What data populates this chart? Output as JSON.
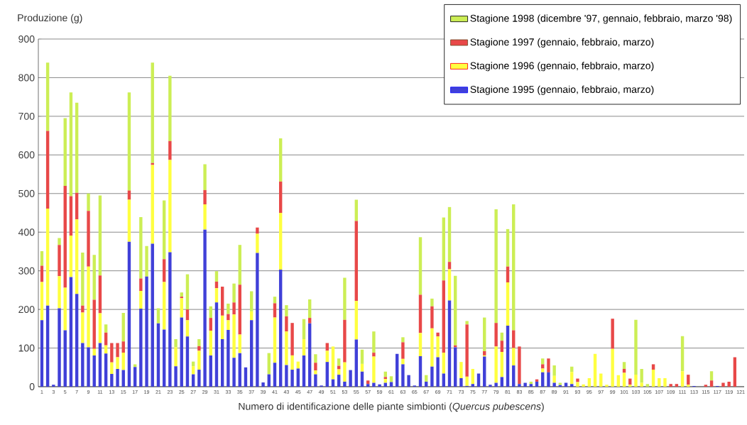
{
  "chart_data": {
    "type": "bar",
    "stacked": true,
    "xlabel": "Numero di identificazione delle piante simbionti (*Quercus pubescens*)",
    "ylabel": "Produzione (g)",
    "categories": [
      "1",
      null,
      "3",
      null,
      "5",
      null,
      "7",
      null,
      "9",
      null,
      "11",
      null,
      "13",
      null,
      "15",
      null,
      "17",
      null,
      "19",
      null,
      "21",
      null,
      "23",
      null,
      "25",
      null,
      "27",
      null,
      "29",
      null,
      "31",
      null,
      "33",
      null,
      "35",
      null,
      "37",
      null,
      "39",
      null,
      "41",
      null,
      "43",
      null,
      "45",
      null,
      "47",
      null,
      "49",
      null,
      "51",
      null,
      "53",
      null,
      "55",
      null,
      "57",
      null,
      "59",
      null,
      "61",
      null,
      "63",
      null,
      "65",
      null,
      "67",
      null,
      "69",
      null,
      "71",
      null,
      "73",
      null,
      "75",
      null,
      "77",
      null,
      "79",
      null,
      "81",
      null,
      "83",
      null,
      "85",
      null,
      "87",
      null,
      "89",
      null,
      "91",
      null,
      "93",
      null,
      "95",
      null,
      "97",
      null,
      "99",
      null,
      "101",
      null,
      "103",
      null,
      "105",
      null,
      "107",
      null,
      "109",
      null,
      "111",
      null,
      "113",
      null,
      "115",
      null,
      "117",
      null,
      "119",
      null,
      "121"
    ],
    "series": [
      {
        "name": "Stagione 1995 (gennaio, febbraio, marzo)",
        "color": "#4040d8",
        "values": [
          172,
          210,
          5,
          203,
          146,
          284,
          240,
          113,
          102,
          81,
          113,
          86,
          33,
          46,
          43,
          375,
          51,
          202,
          285,
          370,
          164,
          148,
          348,
          53,
          179,
          130,
          32,
          44,
          407,
          81,
          218,
          123,
          147,
          75,
          87,
          50,
          172,
          346,
          11,
          32,
          62,
          303,
          56,
          44,
          47,
          81,
          164,
          32,
          3,
          64,
          19,
          31,
          13,
          43,
          122,
          39,
          7,
          10,
          6,
          10,
          12,
          85,
          58,
          30,
          3,
          79,
          13,
          52,
          76,
          34,
          223,
          102,
          22,
          2,
          7,
          34,
          78,
          5,
          10,
          25,
          158,
          55,
          7,
          10,
          7,
          13,
          37,
          37,
          10,
          4,
          10,
          7,
          0,
          0,
          0,
          0,
          0,
          0,
          0,
          0,
          0,
          0,
          0,
          0,
          0,
          0,
          0,
          0,
          0,
          0,
          0,
          0,
          2,
          0,
          0,
          0,
          2,
          0,
          0,
          0,
          0
        ]
      },
      {
        "name": "Stagione 1996 (gennaio, febbraio, marzo)",
        "color": "#ffff40",
        "values": [
          99,
          251,
          0,
          83,
          110,
          107,
          193,
          79,
          209,
          17,
          77,
          21,
          30,
          30,
          45,
          109,
          0,
          46,
          0,
          204,
          0,
          123,
          239,
          49,
          50,
          42,
          21,
          49,
          65,
          64,
          37,
          61,
          25,
          112,
          48,
          0,
          23,
          50,
          0,
          0,
          117,
          147,
          87,
          37,
          18,
          42,
          0,
          10,
          0,
          29,
          85,
          14,
          50,
          0,
          100,
          20,
          0,
          68,
          0,
          10,
          0,
          0,
          14,
          0,
          0,
          60,
          0,
          99,
          54,
          54,
          81,
          0,
          42,
          24,
          39,
          0,
          3,
          0,
          94,
          65,
          112,
          45,
          0,
          0,
          0,
          0,
          10,
          0,
          18,
          0,
          0,
          31,
          12,
          6,
          22,
          85,
          34,
          5,
          98,
          30,
          36,
          5,
          31,
          10,
          0,
          44,
          22,
          22,
          0,
          0,
          40,
          5,
          0,
          0,
          0,
          0,
          0,
          0,
          0,
          0,
          0
        ]
      },
      {
        "name": "Stagione 1997 (gennaio, febbraio, marzo)",
        "color": "#e84848",
        "values": [
          42,
          201,
          0,
          81,
          264,
          102,
          69,
          18,
          144,
          127,
          98,
          33,
          50,
          37,
          29,
          24,
          0,
          32,
          0,
          5,
          0,
          59,
          49,
          0,
          4,
          28,
          0,
          12,
          37,
          33,
          17,
          75,
          16,
          31,
          129,
          0,
          0,
          16,
          0,
          0,
          37,
          81,
          39,
          84,
          0,
          0,
          14,
          20,
          0,
          20,
          0,
          9,
          110,
          0,
          207,
          0,
          9,
          10,
          0,
          5,
          0,
          0,
          43,
          0,
          0,
          99,
          0,
          57,
          10,
          187,
          19,
          5,
          0,
          135,
          0,
          0,
          11,
          0,
          61,
          29,
          41,
          46,
          97,
          0,
          0,
          6,
          11,
          36,
          0,
          0,
          0,
          0,
          9,
          0,
          0,
          0,
          0,
          0,
          78,
          0,
          10,
          16,
          0,
          0,
          0,
          14,
          0,
          0,
          7,
          7,
          0,
          26,
          0,
          0,
          5,
          16,
          0,
          10,
          13,
          76,
          0
        ]
      },
      {
        "name": "Stagione 1998 (dicembre '97, gennaio, febbraio, marzo '98)",
        "color": "#ccee55",
        "values": [
          38,
          177,
          0,
          18,
          175,
          269,
          233,
          137,
          45,
          116,
          207,
          21,
          0,
          0,
          74,
          254,
          7,
          159,
          79,
          260,
          39,
          152,
          169,
          21,
          11,
          91,
          12,
          18,
          67,
          30,
          27,
          0,
          27,
          49,
          103,
          0,
          52,
          0,
          0,
          55,
          17,
          112,
          29,
          0,
          0,
          52,
          48,
          22,
          0,
          0,
          0,
          19,
          109,
          0,
          55,
          37,
          0,
          55,
          0,
          14,
          15,
          0,
          13,
          0,
          0,
          149,
          17,
          20,
          0,
          163,
          142,
          180,
          0,
          9,
          0,
          0,
          87,
          0,
          294,
          21,
          97,
          326,
          0,
          0,
          6,
          0,
          15,
          0,
          27,
          6,
          0,
          14,
          0,
          0,
          0,
          0,
          0,
          0,
          0,
          0,
          18,
          0,
          142,
          36,
          7,
          0,
          0,
          0,
          0,
          0,
          91,
          0,
          0,
          0,
          0,
          24,
          0,
          0,
          0,
          0,
          0
        ]
      }
    ],
    "ylim": [
      0,
      900
    ],
    "yticks": [
      0,
      100,
      200,
      300,
      400,
      500,
      600,
      700,
      800,
      900
    ],
    "grid": "y",
    "legend": "top right"
  }
}
